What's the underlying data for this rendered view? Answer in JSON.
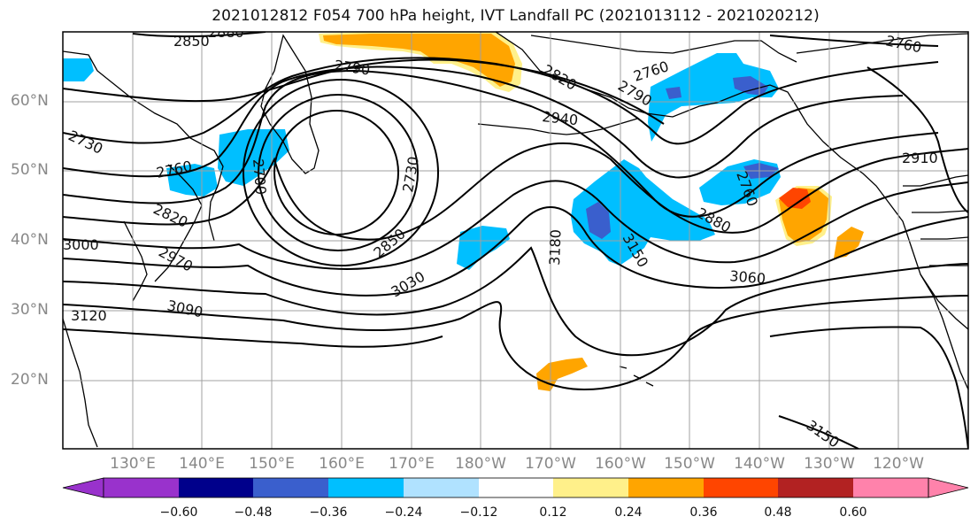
{
  "title": "2021012812 F054 700 hPa height, IVT Landfall PC (2021013112 - 2021020212)",
  "colors": {
    "contour": "#000000",
    "coast": "#000000",
    "grid": "#a0a0a0",
    "land_fill": "#ffffff",
    "axis_label": "#888888"
  },
  "axes": {
    "lat_labels": [
      "60°N",
      "50°N",
      "40°N",
      "30°N",
      "20°N"
    ],
    "lon_labels": [
      "130°E",
      "140°E",
      "150°E",
      "160°E",
      "170°E",
      "180°W",
      "170°W",
      "160°W",
      "150°W",
      "140°W",
      "130°W",
      "120°W"
    ]
  },
  "colorbar": {
    "colors": [
      "#9932cc",
      "#00008b",
      "#3a5fcd",
      "#00bfff",
      "#b0e2ff",
      "#ffffff",
      "#ffffff",
      "#fff08a",
      "#ffa500",
      "#ff4500",
      "#b22222",
      "#ff82ab"
    ],
    "tick_labels": [
      "−0.60",
      "−0.48",
      "−0.36",
      "−0.24",
      "−0.12",
      "0.12",
      "0.24",
      "0.36",
      "0.48",
      "0.60"
    ]
  },
  "contour_labels": [
    "2850",
    "2880",
    "2790",
    "2820",
    "2760",
    "2790",
    "2760",
    "2940",
    "2730",
    "2760",
    "2700",
    "2730",
    "2910",
    "2820",
    "2760",
    "2880",
    "3000",
    "2970",
    "2850",
    "3180",
    "3150",
    "3060",
    "3030",
    "3120",
    "3090",
    "3150"
  ],
  "regions": [
    "positive-anomaly-alaska-gulf",
    "positive-anomaly-pacific-northwest",
    "positive-anomaly-central-pacific",
    "negative-anomaly-subpolar-pacific",
    "negative-anomaly-kamchatka"
  ]
}
